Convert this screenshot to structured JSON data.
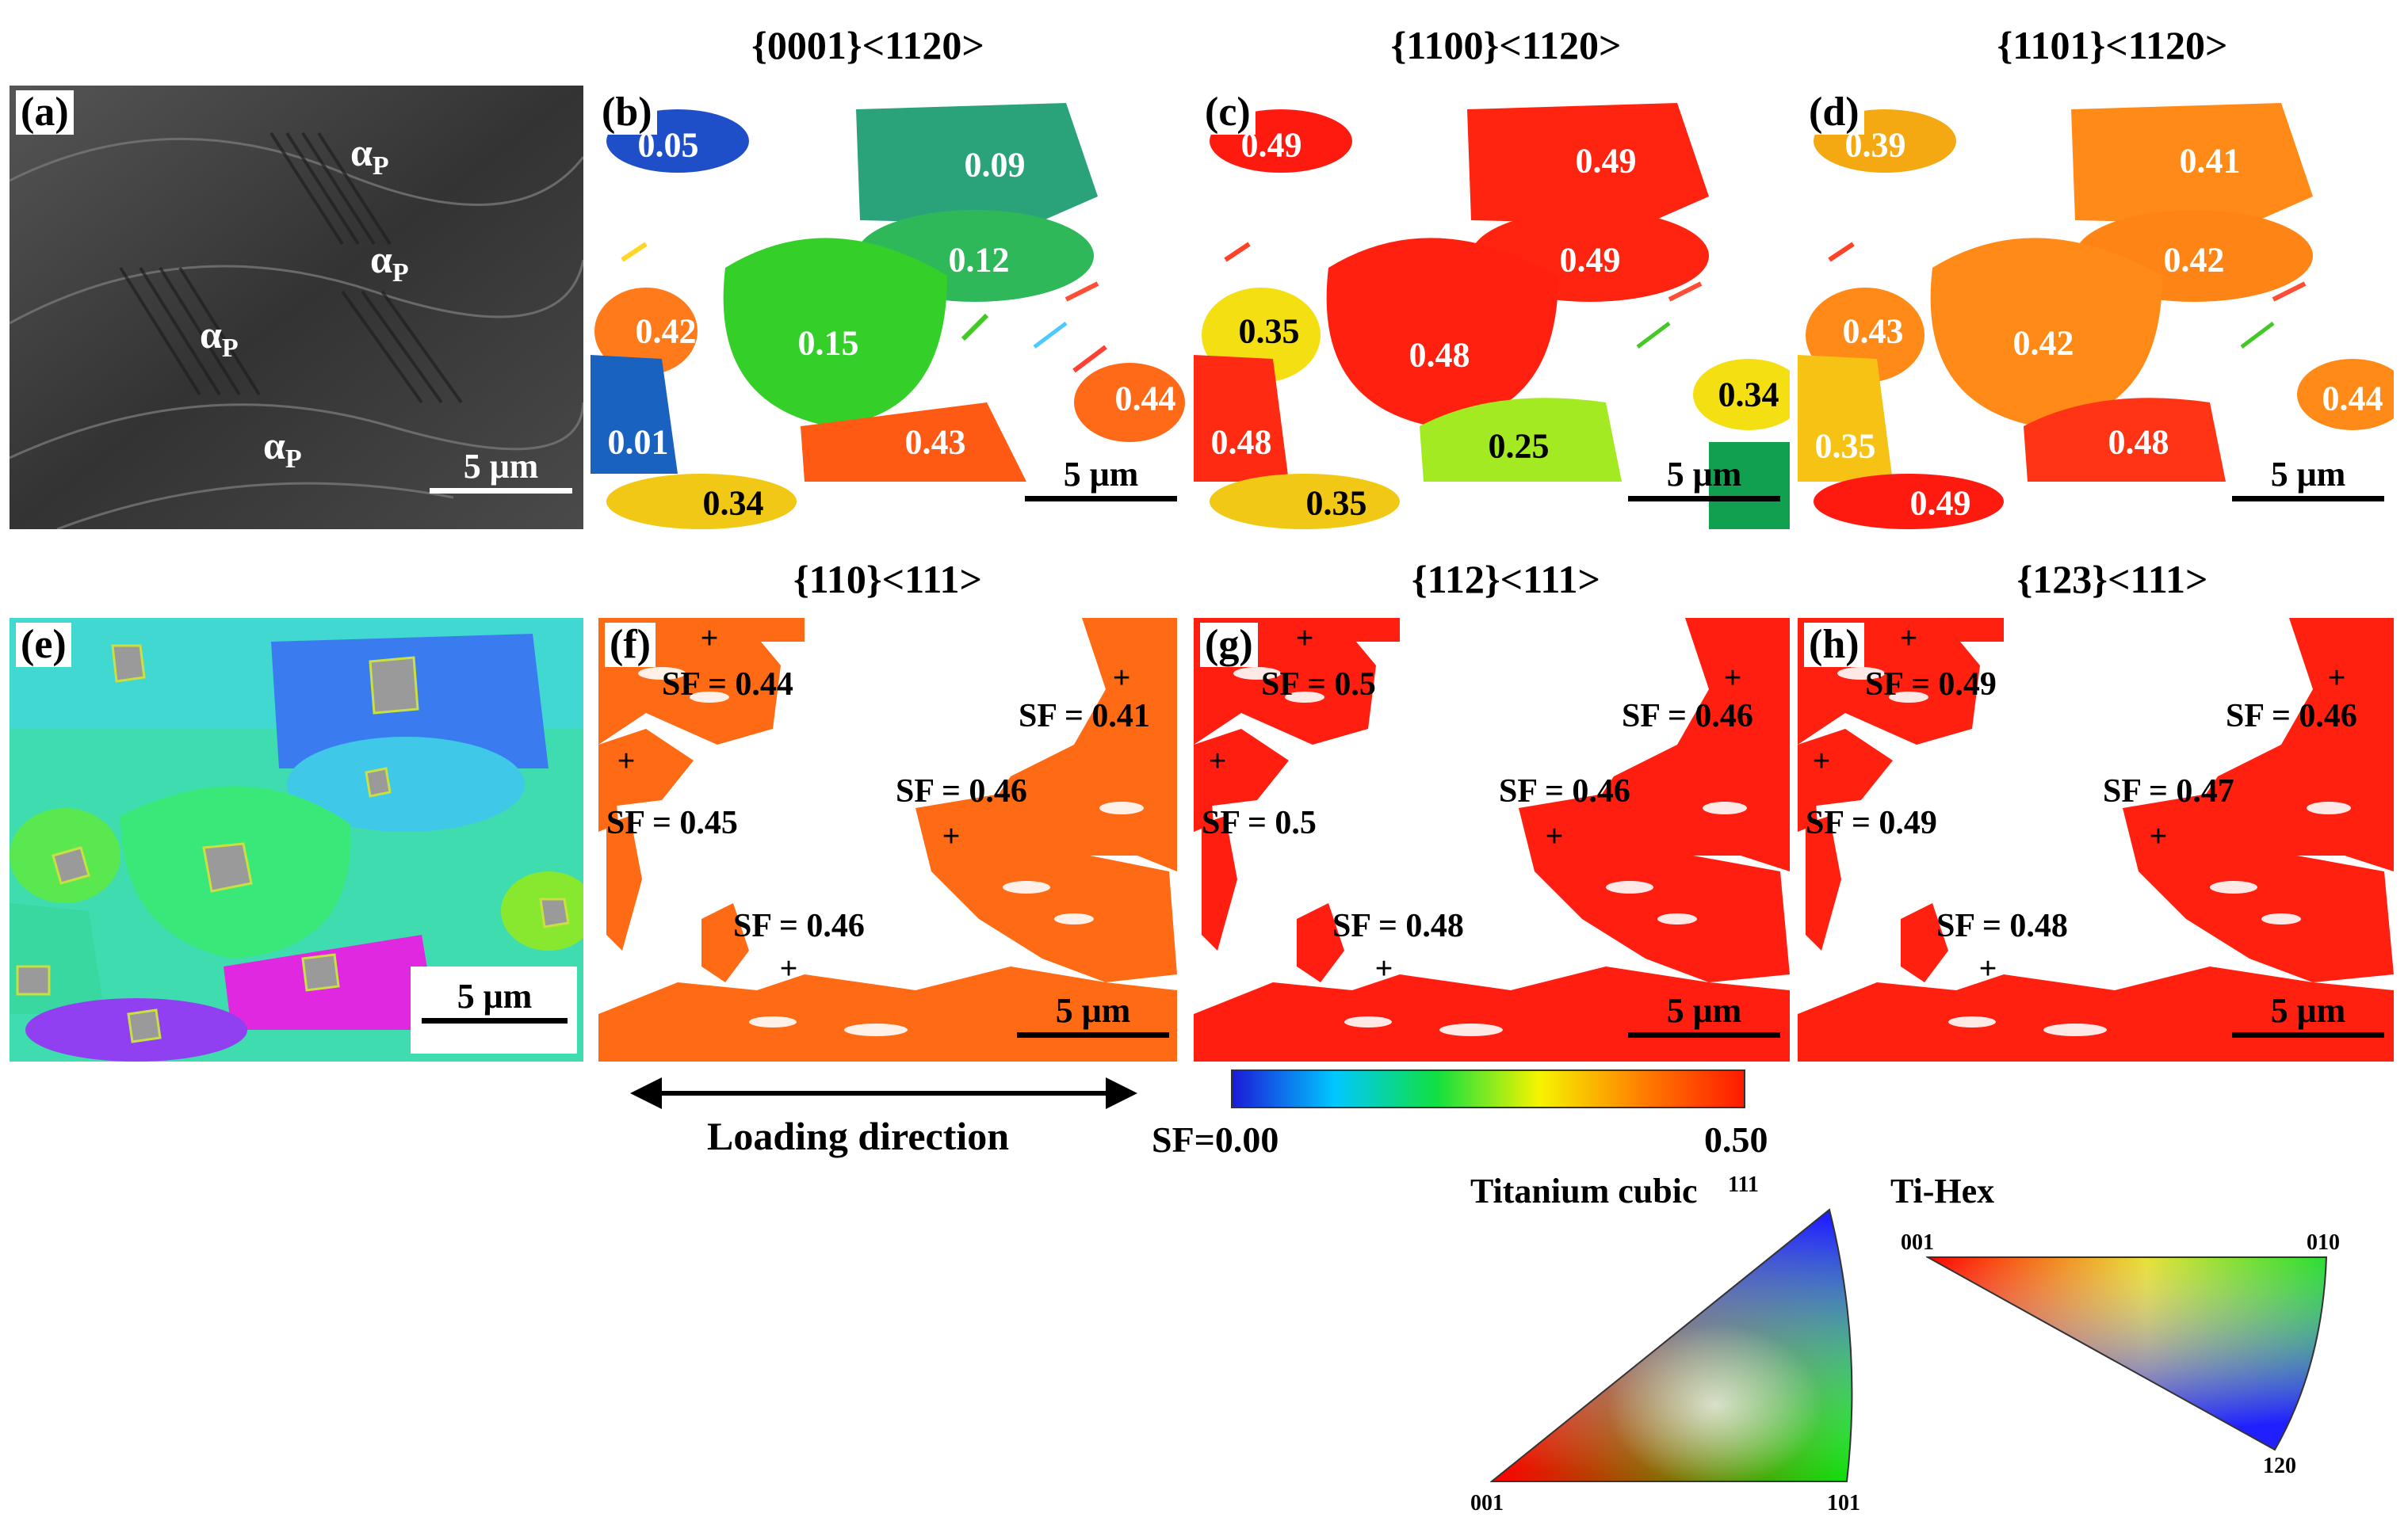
{
  "panels": {
    "a": {
      "label": "(a)",
      "scale": "5 μm",
      "alpha_symbol": "α",
      "alpha_sub": "P"
    },
    "b": {
      "label": "(b)",
      "title": "{0001}<1120>",
      "values": [
        "0.05",
        "0.09",
        "0.12",
        "0.42",
        "0.15",
        "0.01",
        "0.43",
        "0.44",
        "0.34"
      ],
      "scale": "5 μm"
    },
    "c": {
      "label": "(c)",
      "title": "{1100}<1120>",
      "values": [
        "0.49",
        "0.49",
        "0.49",
        "0.35",
        "0.48",
        "0.48",
        "0.25",
        "0.34",
        "0.35"
      ],
      "scale": "5 μm"
    },
    "d": {
      "label": "(d)",
      "title": "{1101}<1120>",
      "values": [
        "0.39",
        "0.41",
        "0.42",
        "0.43",
        "0.42",
        "0.35",
        "0.48",
        "0.44",
        "0.49"
      ],
      "scale": "5 μm"
    },
    "e": {
      "label": "(e)",
      "scale": "5 μm"
    },
    "f": {
      "label": "(f)",
      "title": "{110}<111>",
      "sf": [
        "SF = 0.44",
        "SF = 0.41",
        "SF = 0.46",
        "SF = 0.45",
        "SF = 0.46"
      ],
      "scale": "5 μm"
    },
    "g": {
      "label": "(g)",
      "title": "{112}<111>",
      "sf": [
        "SF = 0.5",
        "SF = 0.46",
        "SF = 0.46",
        "SF = 0.5",
        "SF = 0.48"
      ],
      "scale": "5 μm"
    },
    "h": {
      "label": "(h)",
      "title": "{123}<111>",
      "sf": [
        "SF = 0.49",
        "SF = 0.46",
        "SF = 0.47",
        "SF = 0.49",
        "SF = 0.48"
      ],
      "scale": "5 μm"
    }
  },
  "loading_direction": "Loading direction",
  "colorbar": {
    "min_label": "SF=0.00",
    "max_label": "0.50",
    "colors": [
      "#1b1bd8",
      "#00c8ff",
      "#11e040",
      "#f6f400",
      "#ff7f00",
      "#ff1a00"
    ]
  },
  "ipf_cubic": {
    "title": "Titanium cubic",
    "corners": [
      "111",
      "001",
      "101"
    ]
  },
  "ipf_hex": {
    "title": "Ti-Hex",
    "corners": [
      "001",
      "010",
      "120"
    ]
  }
}
